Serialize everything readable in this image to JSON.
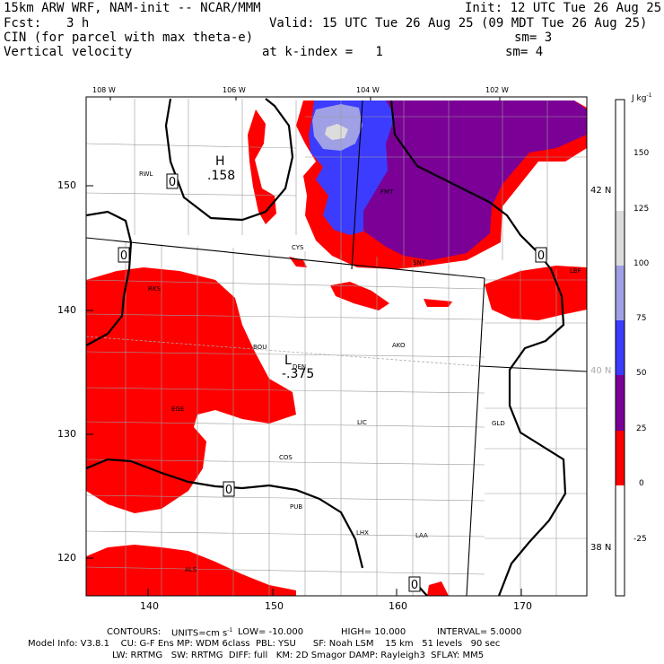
{
  "header": {
    "model": "15km ARW WRF, NAM-init -- NCAR/MMM",
    "init": "Init: 12 UTC Tue 26 Aug 25",
    "fcst_label": "Fcst:",
    "fcst_value": "3 h",
    "valid": "Valid: 15 UTC Tue 26 Aug 25 (09 MDT Tue 26 Aug 25)",
    "field1": "CIN (for parcel with max theta-e)",
    "sm1": "sm= 3",
    "field2": "Vertical velocity",
    "k_index": "at k-index =   1",
    "sm2": "sm= 4"
  },
  "axes": {
    "top_ticks": [
      "108 W",
      "106 W",
      "104 W",
      "102 W"
    ],
    "right_ticks": [
      "42 N",
      "40 N",
      "38 N"
    ],
    "left_ticks": [
      "150",
      "140",
      "130",
      "120"
    ],
    "bottom_ticks": [
      "140",
      "150",
      "160",
      "170"
    ]
  },
  "colorbar": {
    "unit": "J kg",
    "unit_exp": "-1",
    "labels": [
      "150",
      "125",
      "100",
      "75",
      "50",
      "25",
      "0",
      "-25"
    ],
    "bins": [
      {
        "range": "125 to 150+",
        "color": "#ffffff"
      },
      {
        "range": "100 to 125",
        "color": "#dcdcdc"
      },
      {
        "range": "75 to 100",
        "color": "#a0a0e6"
      },
      {
        "range": "50 to 75",
        "color": "#3c3cff"
      },
      {
        "range": "25 to 50",
        "color": "#7a0096"
      },
      {
        "range": "0 to 25",
        "color": "#ff0000"
      },
      {
        "range": "-25 to 0",
        "color": "#ffffff"
      },
      {
        "range": "below -25",
        "color": "#ffffff"
      }
    ]
  },
  "map": {
    "stations": [
      "RWL",
      "FMT",
      "CYS",
      "SNY",
      "LBF",
      "RKS",
      "BOU",
      "DEN",
      "AKO",
      "EGE",
      "LIC",
      "GLD",
      "COS",
      "PUB",
      "LHX",
      "LAA",
      "ALS"
    ],
    "high_label": "H",
    "high_value": ".158",
    "low_label": "L",
    "low_value": "-.375",
    "contour_zero": "0"
  },
  "footer": {
    "contours_label": "CONTOURS:",
    "units": "UNITS=cm s",
    "units_exp": "-1",
    "low": "LOW= -10.000",
    "high": "HIGH= 10.000",
    "interval": "INTERVAL= 5.0000",
    "line1": "Model Info: V3.8.1    CU: G-F Ens MP: WDM 6class  PBL: YSU      SF: Noah LSM    15 km   51 levels   90 sec",
    "line2": "LW: RRTMG   SW: RRTMG  DIFF: full   KM: 2D Smagor DAMP: Rayleigh3  SFLAY: MM5"
  }
}
